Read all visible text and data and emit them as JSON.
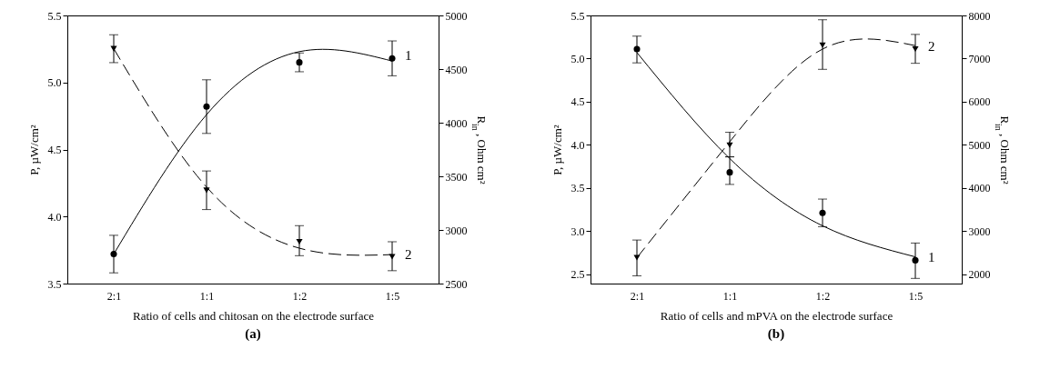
{
  "chart_data": [
    {
      "type": "scatter",
      "title": "(a)",
      "xlabel": "Ratio of cells and chitosan on the electrode surface",
      "ylabel": "P, µW/cm²",
      "y2label": "R$_{in}$ , Ohm cm²",
      "categories": [
        "2:1",
        "1:1",
        "1:2",
        "1:5"
      ],
      "ylim": [
        3.5,
        5.5
      ],
      "yticks": [
        3.5,
        {
          "value": 4,
          "label": "4.0"
        },
        4.5,
        {
          "value": 5,
          "label": "5.0"
        },
        5.5
      ],
      "y2lim": [
        2500,
        5000
      ],
      "y2ticks": [
        2500,
        3000,
        3500,
        4000,
        4500,
        5000
      ],
      "grid": false,
      "legend": false,
      "series": [
        {
          "name": "1",
          "marker": "circle",
          "color": "#000000",
          "values": [
            3.72,
            4.82,
            5.15,
            5.18
          ],
          "errors": [
            [
              3.58,
              3.86
            ],
            [
              4.62,
              5.02
            ],
            [
              5.08,
              5.22
            ],
            [
              5.05,
              5.31
            ]
          ]
        },
        {
          "type": "line",
          "line_style": "solid",
          "color": "#000000",
          "values": [
            3.72,
            4.76,
            5.23,
            5.16
          ]
        },
        {
          "name": "2",
          "axis": "y2",
          "marker": "triangle",
          "color": "#000000",
          "values": [
            4690,
            3370,
            2890,
            2750
          ],
          "errors": [
            [
              4560,
              4820
            ],
            [
              3190,
              3550
            ],
            [
              2760,
              3040
            ],
            [
              2620,
              2890
            ]
          ]
        },
        {
          "type": "line",
          "axis": "y2",
          "line_style": "dashed",
          "color": "#000000",
          "values": [
            4690,
            3400,
            2830,
            2770
          ]
        }
      ]
    },
    {
      "type": "scatter",
      "title": "(b)",
      "xlabel": "Ratio of cells and mPVA on the electrode surface",
      "ylabel": "P, µW/cm²",
      "y2label": "R$_{in}$ , Ohm cm²",
      "categories": [
        "2:1",
        "1:1",
        "1:2",
        "1:5"
      ],
      "ylim": [
        2.39,
        5.5
      ],
      "yticks": [
        2.5,
        {
          "value": 3,
          "label": "3.0"
        },
        3.5,
        {
          "value": 4,
          "label": "4.0"
        },
        4.5,
        {
          "value": 5,
          "label": "5.0"
        },
        5.5
      ],
      "y2lim": [
        1780,
        8000
      ],
      "y2ticks": [
        2000,
        3000,
        4000,
        5000,
        6000,
        7000,
        8000
      ],
      "grid": false,
      "legend": false,
      "series": [
        {
          "name": "1",
          "marker": "circle",
          "color": "#000000",
          "values": [
            5.11,
            3.68,
            3.21,
            2.66
          ],
          "errors": [
            [
              4.95,
              5.26
            ],
            [
              3.54,
              3.86
            ],
            [
              3.05,
              3.37
            ],
            [
              2.45,
              2.86
            ]
          ]
        },
        {
          "type": "line",
          "line_style": "solid",
          "color": "#000000",
          "values": [
            5.07,
            3.84,
            3.06,
            2.7
          ]
        },
        {
          "name": "2",
          "axis": "y2",
          "marker": "triangle",
          "color": "#000000",
          "values": [
            2380,
            4990,
            7310,
            7220
          ],
          "errors": [
            [
              1960,
              2790
            ],
            [
              4720,
              5290
            ],
            [
              6750,
              7900
            ],
            [
              6890,
              7560
            ]
          ]
        },
        {
          "type": "line",
          "axis": "y2",
          "line_style": "dashed",
          "color": "#000000",
          "values": [
            2380,
            5070,
            7220,
            7300
          ]
        }
      ]
    }
  ]
}
